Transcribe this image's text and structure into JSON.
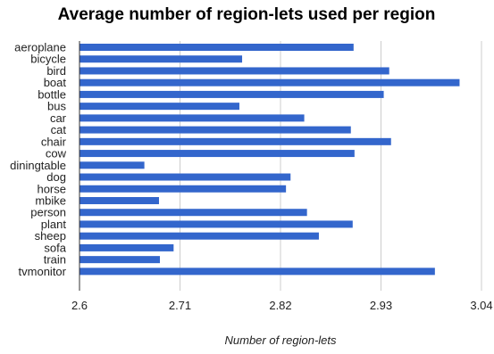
{
  "chart_data": {
    "type": "bar",
    "orientation": "horizontal",
    "title": "Average number of region-lets used per region",
    "xlabel": "Number of region-lets",
    "ylabel": "",
    "xlim": [
      2.6,
      3.04
    ],
    "xticks": [
      2.6,
      2.71,
      2.82,
      2.93,
      3.04
    ],
    "tick_labels": [
      "2.6",
      "2.71",
      "2.82",
      "2.93",
      "3.04"
    ],
    "grid": true,
    "legend": "none",
    "bar_color": "#3366cc",
    "grid_color": "#cccccc",
    "categories": [
      "aeroplane",
      "bicycle",
      "bird",
      "boat",
      "bottle",
      "bus",
      "car",
      "cat",
      "chair",
      "cow",
      "diningtable",
      "dog",
      "horse",
      "mbike",
      "person",
      "plant",
      "sheep",
      "sofa",
      "train",
      "tvmonitor"
    ],
    "values": [
      2.9,
      2.778,
      2.939,
      3.016,
      2.933,
      2.775,
      2.846,
      2.897,
      2.941,
      2.901,
      2.671,
      2.831,
      2.826,
      2.687,
      2.849,
      2.899,
      2.862,
      2.703,
      2.688,
      2.989
    ]
  }
}
